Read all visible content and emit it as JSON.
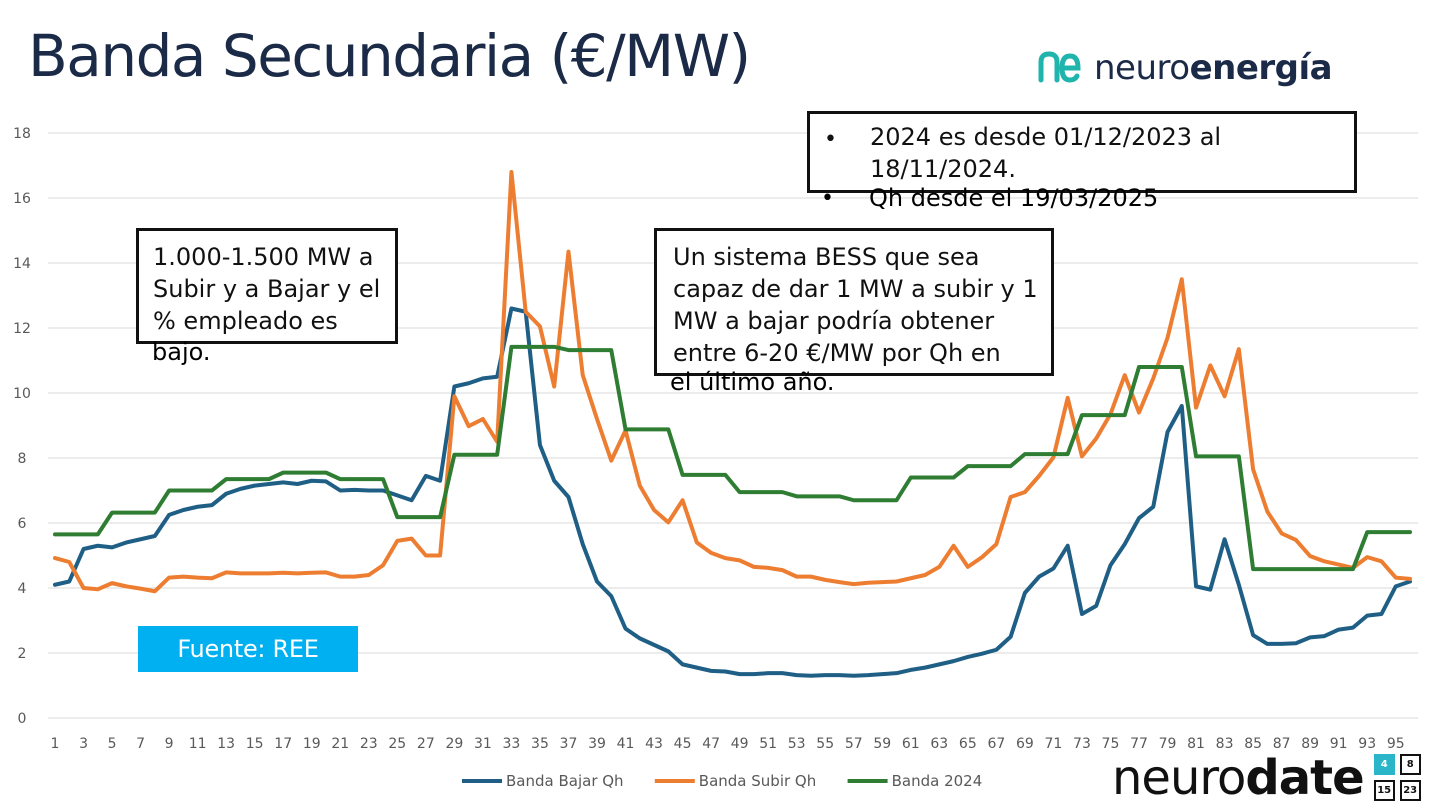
{
  "title": "Banda Secundaria (€/MW)",
  "brand": {
    "prefix": "neuro",
    "suffix": "energía",
    "logo_color": "#1fb5ad"
  },
  "notes": {
    "note1": {
      "inside": [
        "1.000-1.500 MW a",
        "Subir y a Bajar y el",
        "% empleado es"
      ],
      "overflow": "bajo."
    },
    "note2": {
      "inside": [
        "Un sistema BESS que sea",
        "capaz de dar 1 MW a subir y 1",
        "MW a bajar podría obtener",
        "entre 6-20 €/MW por Qh en"
      ],
      "overflow": "el último año."
    },
    "note3": {
      "bullet1_a": "2024 es desde 01/12/2023 al",
      "bullet1_b": "18/11/2024.",
      "bullet2": "Qh desde el 19/03/2025",
      "bullet_char": "•"
    }
  },
  "source_label": "Fuente: REE",
  "footer": {
    "prefix": "neuro",
    "suffix": "date",
    "calendar": [
      "4",
      "8",
      "15",
      "23"
    ]
  },
  "chart_data": {
    "type": "line",
    "title": "",
    "xlabel": "",
    "ylabel": "",
    "ylim": [
      0,
      18
    ],
    "yticks": [
      0,
      2,
      4,
      6,
      8,
      10,
      12,
      14,
      16,
      18
    ],
    "xlim": [
      1,
      96
    ],
    "xticks": [
      1,
      3,
      5,
      7,
      9,
      11,
      13,
      15,
      17,
      19,
      21,
      23,
      25,
      27,
      29,
      31,
      33,
      35,
      37,
      39,
      41,
      43,
      45,
      47,
      49,
      51,
      53,
      55,
      57,
      59,
      61,
      63,
      65,
      67,
      69,
      71,
      73,
      75,
      77,
      79,
      81,
      83,
      85,
      87,
      89,
      91,
      93,
      95
    ],
    "grid": true,
    "legend_position": "bottom",
    "series": [
      {
        "name": "Banda Bajar Qh",
        "color": "#1f5f86",
        "values": [
          4.1,
          4.2,
          5.2,
          5.3,
          5.25,
          5.4,
          5.5,
          5.6,
          6.25,
          6.4,
          6.5,
          6.55,
          6.9,
          7.05,
          7.15,
          7.2,
          7.25,
          7.2,
          7.3,
          7.28,
          7.0,
          7.02,
          7.0,
          7.0,
          6.85,
          6.7,
          7.45,
          7.3,
          10.2,
          10.3,
          10.45,
          10.5,
          12.6,
          12.5,
          8.4,
          7.3,
          6.8,
          5.35,
          4.2,
          3.75,
          2.75,
          2.45,
          2.25,
          2.05,
          1.65,
          1.55,
          1.45,
          1.43,
          1.35,
          1.35,
          1.38,
          1.38,
          1.32,
          1.3,
          1.32,
          1.32,
          1.3,
          1.32,
          1.35,
          1.38,
          1.48,
          1.55,
          1.65,
          1.75,
          1.88,
          1.98,
          2.1,
          2.5,
          3.85,
          4.35,
          4.6,
          5.3,
          3.2,
          3.45,
          4.7,
          5.35,
          6.15,
          6.5,
          8.8,
          9.6,
          4.05,
          3.95,
          5.5,
          4.1,
          2.55,
          2.28,
          2.28,
          2.3,
          2.48,
          2.52,
          2.72,
          2.78,
          3.15,
          3.2,
          4.05,
          4.2
        ]
      },
      {
        "name": "Banda Subir Qh",
        "color": "#ed7d31",
        "values": [
          4.92,
          4.8,
          4.0,
          3.96,
          4.15,
          4.05,
          3.98,
          3.9,
          4.32,
          4.35,
          4.32,
          4.3,
          4.48,
          4.45,
          4.45,
          4.45,
          4.47,
          4.45,
          4.47,
          4.48,
          4.35,
          4.35,
          4.4,
          4.7,
          5.45,
          5.52,
          5.0,
          5.0,
          9.9,
          8.98,
          9.2,
          8.5,
          16.8,
          12.5,
          12.05,
          10.2,
          14.35,
          10.55,
          9.2,
          7.92,
          8.85,
          7.15,
          6.4,
          6.02,
          6.7,
          5.4,
          5.08,
          4.92,
          4.85,
          4.65,
          4.62,
          4.55,
          4.35,
          4.35,
          4.25,
          4.18,
          4.12,
          4.16,
          4.18,
          4.2,
          4.3,
          4.4,
          4.65,
          5.3,
          4.65,
          4.95,
          5.35,
          6.8,
          6.95,
          7.45,
          8.02,
          9.85,
          8.05,
          8.6,
          9.35,
          10.55,
          9.4,
          10.45,
          11.7,
          13.5,
          9.55,
          10.85,
          9.9,
          11.35,
          7.65,
          6.35,
          5.68,
          5.48,
          4.98,
          4.82,
          4.72,
          4.62,
          4.95,
          4.82,
          4.32,
          4.28
        ]
      },
      {
        "name": "Banda 2024",
        "color": "#2e7d32",
        "values": [
          5.65,
          5.65,
          5.65,
          5.65,
          6.32,
          6.32,
          6.32,
          6.32,
          7.0,
          7.0,
          7.0,
          7.0,
          7.35,
          7.35,
          7.35,
          7.35,
          7.55,
          7.55,
          7.55,
          7.55,
          7.35,
          7.35,
          7.35,
          7.35,
          6.18,
          6.18,
          6.18,
          6.18,
          8.1,
          8.1,
          8.1,
          8.1,
          11.42,
          11.42,
          11.42,
          11.42,
          11.32,
          11.32,
          11.32,
          11.32,
          8.88,
          8.88,
          8.88,
          8.88,
          7.48,
          7.48,
          7.48,
          7.48,
          6.95,
          6.95,
          6.95,
          6.95,
          6.82,
          6.82,
          6.82,
          6.82,
          6.7,
          6.7,
          6.7,
          6.7,
          7.4,
          7.4,
          7.4,
          7.4,
          7.75,
          7.75,
          7.75,
          7.75,
          8.12,
          8.12,
          8.12,
          8.12,
          9.32,
          9.32,
          9.32,
          9.32,
          10.8,
          10.8,
          10.8,
          10.8,
          8.05,
          8.05,
          8.05,
          8.05,
          4.58,
          4.58,
          4.58,
          4.58,
          4.58,
          4.58,
          4.58,
          4.58,
          5.72,
          5.72,
          5.72,
          5.72
        ]
      }
    ]
  }
}
